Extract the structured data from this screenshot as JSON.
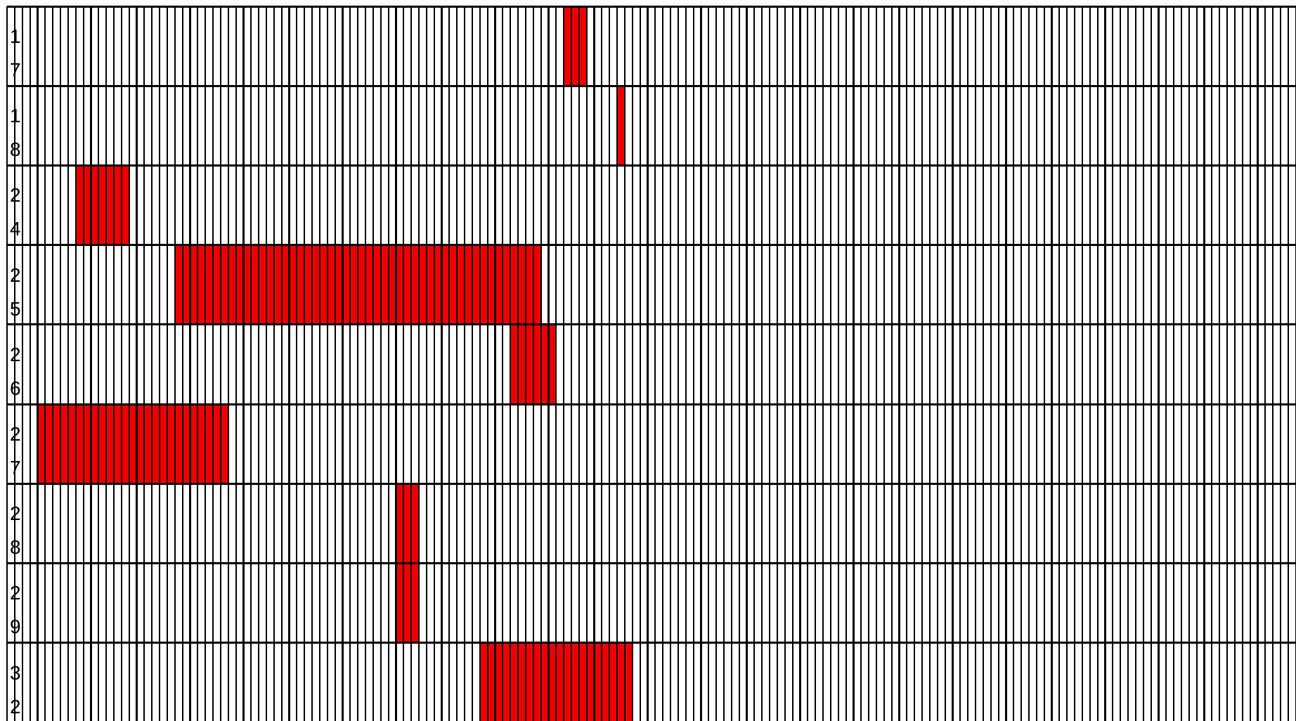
{
  "grid": {
    "columns": 169,
    "colors": {
      "background": "#ffffff",
      "grid_line": "#000000",
      "filled_cell": "#ee0000"
    },
    "rows": [
      {
        "label": [
          "1",
          "7"
        ],
        "filled_columns": [
          [
            73,
            75
          ]
        ]
      },
      {
        "label": [
          "1",
          "8"
        ],
        "filled_columns": [
          [
            80,
            80
          ]
        ]
      },
      {
        "label": [
          "2",
          "4"
        ],
        "filled_columns": [
          [
            9,
            15
          ]
        ]
      },
      {
        "label": [
          "2",
          "5"
        ],
        "filled_columns": [
          [
            22,
            69
          ]
        ]
      },
      {
        "label": [
          "2",
          "6"
        ],
        "filled_columns": [
          [
            66,
            71
          ]
        ]
      },
      {
        "label": [
          "2",
          "7"
        ],
        "filled_columns": [
          [
            4,
            28
          ]
        ]
      },
      {
        "label": [
          "2",
          "8"
        ],
        "filled_columns": [
          [
            51,
            53
          ]
        ]
      },
      {
        "label": [
          "2",
          "9"
        ],
        "filled_columns": [
          [
            51,
            53
          ]
        ]
      },
      {
        "label": [
          "3",
          "2"
        ],
        "filled_columns": [
          [
            62,
            81
          ]
        ]
      }
    ]
  }
}
